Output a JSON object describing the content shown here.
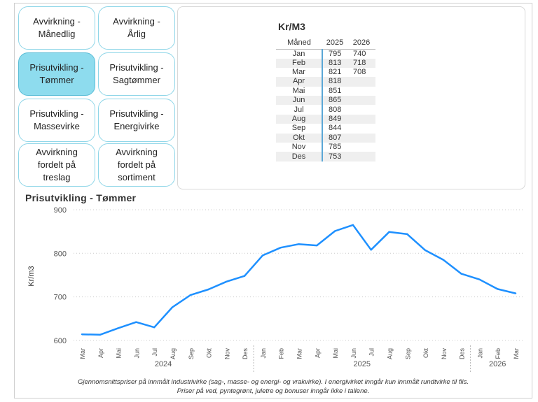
{
  "nav": {
    "buttons": [
      {
        "label": "Avvirkning -\nMånedlig",
        "active": false
      },
      {
        "label": "Avvirkning -\nÅrlig",
        "active": false
      },
      {
        "label": "Prisutvikling -\nTømmer",
        "active": true
      },
      {
        "label": "Prisutvikling -\nSagtømmer",
        "active": false
      },
      {
        "label": "Prisutvikling -\nMassevirke",
        "active": false
      },
      {
        "label": "Prisutvikling -\nEnergivirke",
        "active": false
      },
      {
        "label": "Avvirkning\nfordelt på\ntreslag",
        "active": false
      },
      {
        "label": "Avvirkning\nfordelt på\nsortiment",
        "active": false
      }
    ]
  },
  "table": {
    "title": "Kr/M3",
    "headers": [
      "Måned",
      "2025",
      "2026"
    ],
    "rows": [
      [
        "Jan",
        "795",
        "740"
      ],
      [
        "Feb",
        "813",
        "718"
      ],
      [
        "Mar",
        "821",
        "708"
      ],
      [
        "Apr",
        "818",
        ""
      ],
      [
        "Mai",
        "851",
        ""
      ],
      [
        "Jun",
        "865",
        ""
      ],
      [
        "Jul",
        "808",
        ""
      ],
      [
        "Aug",
        "849",
        ""
      ],
      [
        "Sep",
        "844",
        ""
      ],
      [
        "Okt",
        "807",
        ""
      ],
      [
        "Nov",
        "785",
        ""
      ],
      [
        "Des",
        "753",
        ""
      ]
    ]
  },
  "chart_data": {
    "type": "line",
    "title": "Prisutvikling - Tømmer",
    "ylabel": "Kr/m3",
    "xlabel": "",
    "ylim": [
      595,
      900
    ],
    "yticks": [
      600,
      700,
      800,
      900
    ],
    "grid": true,
    "x": [
      "Mar",
      "Apr",
      "Mai",
      "Jun",
      "Jul",
      "Aug",
      "Sep",
      "Okt",
      "Nov",
      "Des",
      "Jan",
      "Feb",
      "Mar",
      "Apr",
      "Mai",
      "Jun",
      "Jul",
      "Aug",
      "Sep",
      "Okt",
      "Nov",
      "Des",
      "Jan",
      "Feb",
      "Mar"
    ],
    "year_groups": [
      {
        "label": "2024",
        "start": 0,
        "end": 9
      },
      {
        "label": "2025",
        "start": 10,
        "end": 21
      },
      {
        "label": "2026",
        "start": 22,
        "end": 24
      }
    ],
    "series": [
      {
        "color": "#1e90ff",
        "values": [
          614,
          613,
          628,
          642,
          630,
          676,
          704,
          717,
          735,
          748,
          795,
          813,
          821,
          818,
          851,
          865,
          808,
          849,
          844,
          807,
          785,
          753,
          740,
          718,
          708
        ]
      }
    ]
  },
  "footnote": {
    "line1": "Gjennomsnittspriser på innmålt industrivirke (sag-, masse- og energi- og vrakvirke). I energivirket inngår kun innmålt rundtvirke til flis.",
    "line2": "Priser på ved, pyntegrønt, juletre og bonuser inngår ikke i tallene."
  }
}
